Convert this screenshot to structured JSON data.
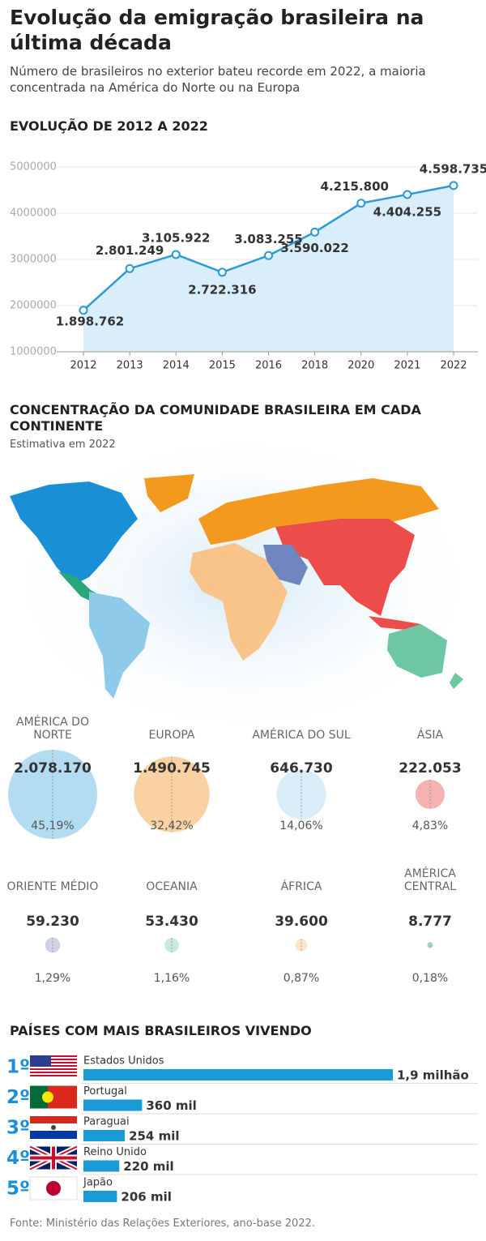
{
  "header": {
    "title": "Evolução da emigração brasileira na última década",
    "subtitle": "Número de brasileiros no exterior bateu recorde em 2022, a maioria concentrada na América do Norte ou na Europa"
  },
  "chart_data": [
    {
      "type": "line",
      "title": "EVOLUÇÃO DE 2012 A 2022",
      "categories": [
        "2012",
        "2013",
        "2014",
        "2015",
        "2016",
        "2018",
        "2020",
        "2021",
        "2022"
      ],
      "values": [
        1898762,
        2801249,
        3105922,
        2722316,
        3083255,
        3590022,
        4215800,
        4404255,
        4598735
      ],
      "value_labels": [
        "1.898.762",
        "2.801.249",
        "3.105.922",
        "2.722.316",
        "3.083.255",
        "3.590.022",
        "4.215.800",
        "4.404.255",
        "4.598.735"
      ],
      "color": "#2a9ad6",
      "ylim": [
        1000000,
        5000000
      ],
      "yticks": [
        1000000,
        2000000,
        3000000,
        4000000,
        5000000
      ],
      "grid": true
    },
    {
      "type": "bubble",
      "title": "CONCENTRAÇÃO DA COMUNIDADE BRASILEIRA EM CADA CONTINENTE",
      "subtitle": "Estimativa em 2022",
      "categories": [
        "AMÉRICA DO NORTE",
        "EUROPA",
        "AMÉRICA DO SUL",
        "ÁSIA",
        "ORIENTE MÉDIO",
        "OCEANIA",
        "ÁFRICA",
        "AMÉRICA CENTRAL"
      ],
      "values": [
        2078170,
        1490745,
        646730,
        222053,
        59230,
        53430,
        39600,
        8777
      ],
      "value_labels": [
        "2.078.170",
        "1.490.745",
        "646.730",
        "222.053",
        "59.230",
        "53.430",
        "39.600",
        "8.777"
      ],
      "share_labels": [
        "45,19%",
        "32,42%",
        "14,06%",
        "4,83%",
        "1,29%",
        "1,16%",
        "0,87%",
        "0,18%"
      ],
      "colors": [
        "#a6d6f1",
        "#f9c992",
        "#d3eaf8",
        "#f4a3a3",
        "#c3cbe0",
        "#bde6d3",
        "#fde0bd",
        "#8fd1b4"
      ]
    },
    {
      "type": "bar",
      "title": "PAÍSES COM MAIS BRASILEIROS VIVENDO",
      "ranks": [
        "1º",
        "2º",
        "3º",
        "4º",
        "5º"
      ],
      "categories": [
        "Estados Unidos",
        "Portugal",
        "Paraguai",
        "Reino Unido",
        "Japão"
      ],
      "values": [
        1900000,
        360000,
        254000,
        220000,
        206000
      ],
      "value_labels": [
        "1,9 milhão",
        "360 mil",
        "254 mil",
        "220 mil",
        "206 mil"
      ],
      "color": "#1a9ad6"
    }
  ],
  "footer": {
    "source": "Fonte: Ministério das Relações Exteriores, ano-base 2022."
  }
}
